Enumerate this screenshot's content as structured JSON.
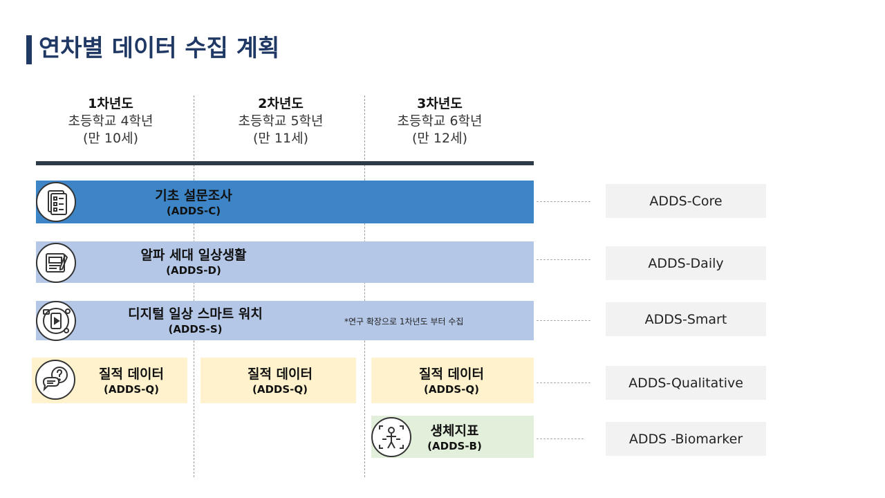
{
  "title": "연차별 데이터 수집 계획",
  "years": [
    {
      "year": "1차년도",
      "grade": "초등학교 4학년",
      "age": "(만 10세)"
    },
    {
      "year": "2차년도",
      "grade": "초등학교 5학년",
      "age": "(만 11세)"
    },
    {
      "year": "3차년도",
      "grade": "초등학교 6학년",
      "age": "(만 12세)"
    }
  ],
  "bands": {
    "core": {
      "name": "기초 설문조사",
      "code": "(ADDS-C)"
    },
    "daily": {
      "name": "알파 세대 일상생활",
      "code": "(ADDS-D)"
    },
    "smart": {
      "name": "디지털 일상 스마트 워치",
      "code": "(ADDS-S)"
    }
  },
  "smart_note": "*연구 확장으로 1차년도 부터 수집",
  "qualitative": [
    {
      "name": "질적 데이터",
      "code": "(ADDS-Q)"
    },
    {
      "name": "질적 데이터",
      "code": "(ADDS-Q)"
    },
    {
      "name": "질적 데이터",
      "code": "(ADDS-Q)"
    }
  ],
  "bio": {
    "name": "생체지표",
    "code": "(ADDS-B)"
  },
  "labels": {
    "core": "ADDS-Core",
    "daily": "ADDS-Daily",
    "smart": "ADDS-Smart",
    "qualitative": "ADDS-Qualitative",
    "bio": "ADDS -Biomarker"
  },
  "icons": {
    "core": "survey-checklist-icon",
    "daily": "notebook-icon",
    "smart": "smartwatch-app-icon",
    "qualitative": "question-chat-icon",
    "bio": "body-scan-icon"
  },
  "colors": {
    "title": "#1f3864",
    "core_band": "#3d85c6",
    "daily_band": "#b4c7e7",
    "smart_band": "#b4c7e7",
    "qualitative_box": "#fff2cc",
    "bio_box": "#e2efda",
    "label_box": "#f2f2f2"
  }
}
